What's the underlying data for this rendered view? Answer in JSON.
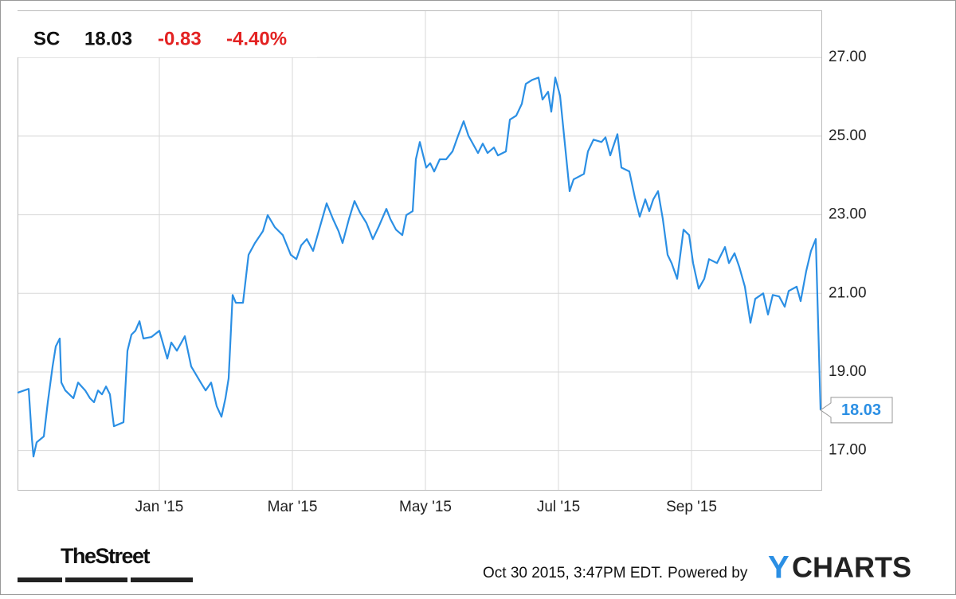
{
  "header": {
    "symbol": "SC",
    "price": "18.03",
    "change": "-0.83",
    "change_pct": "-4.40%"
  },
  "footer": {
    "brand": "TheStreet",
    "timestamp": "Oct 30 2015, 3:47PM EDT.",
    "powered": "Powered by",
    "logo_y": "Y",
    "logo_rest": "CHARTS"
  },
  "chart_data": {
    "type": "line",
    "color": "#2b8fe4",
    "grid": true,
    "xlim": [
      -2.132,
      9.964
    ],
    "ylim": [
      16,
      28.2
    ],
    "xticks": [
      {
        "value": 0,
        "label": "Jan '15"
      },
      {
        "value": 2,
        "label": "Mar '15"
      },
      {
        "value": 4,
        "label": "May '15"
      },
      {
        "value": 6,
        "label": "Jul '15"
      },
      {
        "value": 8,
        "label": "Sep '15"
      }
    ],
    "yticks": [
      {
        "value": 17,
        "label": "17.00"
      },
      {
        "value": 19,
        "label": "19.00"
      },
      {
        "value": 21,
        "label": "21.00"
      },
      {
        "value": 23,
        "label": "23.00"
      },
      {
        "value": 25,
        "label": "25.00"
      },
      {
        "value": 27,
        "label": "27.00"
      }
    ],
    "x": [
      -2.132,
      -1.964,
      -1.916,
      -1.892,
      -1.844,
      -1.737,
      -1.677,
      -1.605,
      -1.557,
      -1.497,
      -1.473,
      -1.413,
      -1.293,
      -1.222,
      -1.114,
      -1.042,
      -0.982,
      -0.922,
      -0.862,
      -0.802,
      -0.743,
      -0.683,
      -0.539,
      -0.479,
      -0.419,
      -0.359,
      -0.299,
      -0.24,
      -0.12,
      0,
      0.12,
      0.18,
      0.263,
      0.383,
      0.479,
      0.623,
      0.695,
      0.778,
      0.862,
      0.934,
      0.994,
      1.042,
      1.102,
      1.15,
      1.257,
      1.341,
      1.437,
      1.557,
      1.629,
      1.737,
      1.856,
      1.976,
      2.06,
      2.132,
      2.216,
      2.311,
      2.395,
      2.515,
      2.611,
      2.695,
      2.754,
      2.85,
      2.934,
      3.018,
      3.114,
      3.21,
      3.293,
      3.413,
      3.473,
      3.557,
      3.653,
      3.713,
      3.808,
      3.856,
      3.916,
      4.012,
      4.072,
      4.132,
      4.216,
      4.311,
      4.407,
      4.491,
      4.575,
      4.647,
      4.79,
      4.862,
      4.934,
      5.03,
      5.09,
      5.21,
      5.269,
      5.365,
      5.449,
      5.509,
      5.605,
      5.701,
      5.76,
      5.844,
      5.892,
      5.952,
      6.024,
      6.108,
      6.168,
      6.228,
      6.383,
      6.443,
      6.527,
      6.647,
      6.707,
      6.778,
      6.886,
      6.946,
      7.066,
      7.15,
      7.222,
      7.305,
      7.365,
      7.425,
      7.497,
      7.569,
      7.641,
      7.701,
      7.784,
      7.88,
      7.964,
      8.024,
      8.108,
      8.192,
      8.263,
      8.383,
      8.503,
      8.563,
      8.647,
      8.719,
      8.802,
      8.886,
      8.958,
      9.078,
      9.15,
      9.222,
      9.317,
      9.401,
      9.461,
      9.581,
      9.641,
      9.725,
      9.796,
      9.868,
      9.94
    ],
    "values": [
      18.47,
      18.57,
      17.32,
      16.85,
      17.21,
      17.36,
      18.23,
      19.14,
      19.65,
      19.85,
      18.73,
      18.53,
      18.33,
      18.73,
      18.53,
      18.33,
      18.23,
      18.53,
      18.43,
      18.63,
      18.43,
      17.62,
      17.72,
      19.54,
      19.95,
      20.05,
      20.29,
      19.85,
      19.89,
      20.05,
      19.34,
      19.75,
      19.54,
      19.91,
      19.14,
      18.73,
      18.53,
      18.73,
      18.13,
      17.86,
      18.33,
      18.84,
      20.96,
      20.76,
      20.76,
      21.98,
      22.28,
      22.58,
      22.99,
      22.68,
      22.48,
      21.98,
      21.87,
      22.22,
      22.38,
      22.08,
      22.58,
      23.29,
      22.89,
      22.58,
      22.28,
      22.89,
      23.35,
      23.05,
      22.79,
      22.38,
      22.68,
      23.15,
      22.89,
      22.62,
      22.48,
      22.99,
      23.09,
      24.41,
      24.85,
      24.2,
      24.31,
      24.1,
      24.41,
      24.41,
      24.61,
      25.01,
      25.38,
      25.01,
      24.57,
      24.81,
      24.57,
      24.71,
      24.51,
      24.61,
      25.42,
      25.52,
      25.82,
      26.33,
      26.43,
      26.49,
      25.93,
      26.13,
      25.62,
      26.49,
      26.03,
      24.61,
      23.6,
      23.9,
      24.04,
      24.61,
      24.91,
      24.85,
      24.97,
      24.51,
      25.05,
      24.2,
      24.1,
      23.43,
      22.95,
      23.39,
      23.09,
      23.39,
      23.6,
      22.89,
      21.98,
      21.77,
      21.37,
      22.62,
      22.48,
      21.77,
      21.12,
      21.37,
      21.87,
      21.77,
      22.18,
      21.77,
      22.02,
      21.67,
      21.17,
      20.25,
      20.86,
      21,
      20.46,
      20.96,
      20.92,
      20.66,
      21.06,
      21.17,
      20.8,
      21.57,
      22.08,
      22.38,
      18.03
    ]
  }
}
